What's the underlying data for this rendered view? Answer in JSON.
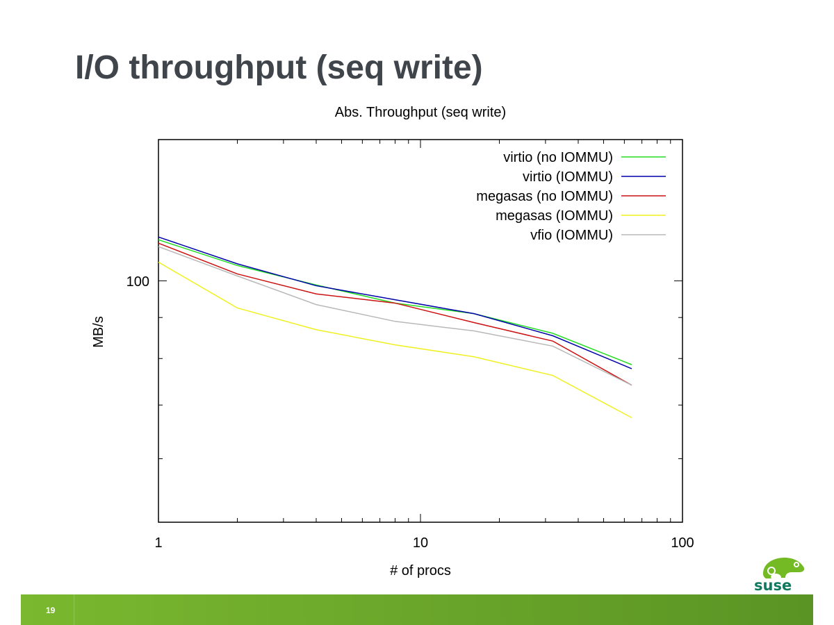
{
  "slide": {
    "title": "I/O throughput (seq write)",
    "page_number": "19",
    "logo_text": "suse"
  },
  "chart_data": {
    "type": "line",
    "title": "Abs. Throughput (seq write)",
    "xlabel": "# of procs",
    "ylabel": "MB/s",
    "x_scale": "log",
    "y_scale": "log",
    "xlim": [
      1,
      100
    ],
    "ylim": [
      50,
      150
    ],
    "x_tick_labels": [
      "1",
      "10",
      "100"
    ],
    "y_tick_labels": [
      "100"
    ],
    "grid": false,
    "legend_position": "top-right",
    "x": [
      1,
      2,
      4,
      8,
      16,
      32,
      64
    ],
    "series": [
      {
        "name": "virtio (no IOMMU)",
        "color": "#22dd22",
        "values": [
          112.5,
          104.5,
          98.8,
          93.8,
          91.0,
          86.0,
          78.6
        ]
      },
      {
        "name": "virtio (IOMMU)",
        "color": "#0000aa",
        "values": [
          113.4,
          105.0,
          98.6,
          94.7,
          91.0,
          85.4,
          77.7
        ]
      },
      {
        "name": "megasas (no IOMMU)",
        "color": "#cc1111",
        "values": [
          111.4,
          102.0,
          96.3,
          93.8,
          88.7,
          84.1,
          74.1
        ]
      },
      {
        "name": "megasas (IOMMU)",
        "color": "#f0f020",
        "values": [
          105.5,
          92.5,
          86.9,
          83.2,
          80.4,
          76.2,
          67.5
        ]
      },
      {
        "name": "vfio (IOMMU)",
        "color": "#b8b8b8",
        "values": [
          110.3,
          101.4,
          93.4,
          89.0,
          86.6,
          82.9,
          74.1
        ]
      }
    ]
  }
}
